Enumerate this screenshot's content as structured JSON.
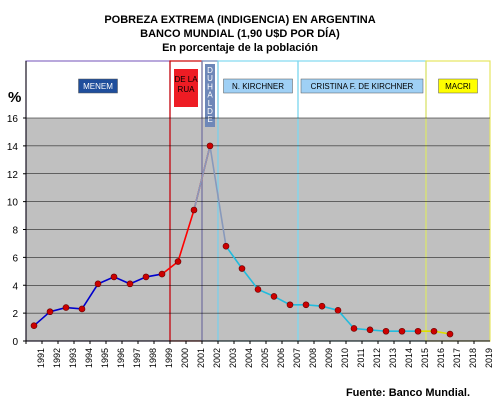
{
  "title_lines": [
    "POBREZA EXTREMA (INDIGENCIA) EN ARGENTINA",
    "BANCO MUNDIAL (1,90 U$D POR DÍA)",
    "En porcentaje de la población"
  ],
  "source": "Fuente: Banco Mundial.",
  "chart_data": {
    "type": "line",
    "ylabel": "%",
    "ylim": [
      0,
      16
    ],
    "yticks": [
      0,
      2,
      4,
      6,
      8,
      10,
      12,
      14,
      16
    ],
    "grid": "horizontal",
    "shaded_band": [
      0,
      16
    ],
    "x_categories": [
      "1991",
      "1992",
      "1993",
      "1994",
      "1995",
      "1996",
      "1997",
      "1998",
      "1999",
      "2000",
      "2001",
      "2002",
      "2003",
      "2004",
      "2005",
      "2006",
      "2007",
      "2008",
      "2009",
      "2010",
      "2011",
      "2012",
      "2013",
      "2014",
      "2015",
      "2016",
      "2017",
      "2018",
      "2019"
    ],
    "series": [
      {
        "color": "#0000cc",
        "x": [
          "1991",
          "1992",
          "1993",
          "1994",
          "1995",
          "1996",
          "1997",
          "1998",
          "1999"
        ],
        "values": [
          1.1,
          2.1,
          2.4,
          2.3,
          4.1,
          4.6,
          4.1,
          4.6,
          4.8
        ]
      },
      {
        "color": "#ff0000",
        "x": [
          "1999",
          "2000",
          "2001",
          "2002"
        ],
        "values": [
          4.8,
          5.7,
          9.4,
          14.0
        ]
      },
      {
        "color": "#8899bb",
        "x": [
          "2001",
          "2002",
          "2003"
        ],
        "values": [
          9.4,
          14.0,
          6.8
        ]
      },
      {
        "color": "#22bbdd",
        "x": [
          "2003",
          "2004",
          "2005",
          "2006",
          "2007",
          "2008",
          "2009",
          "2010",
          "2011",
          "2012",
          "2013",
          "2014",
          "2015"
        ],
        "values": [
          6.8,
          5.2,
          3.7,
          3.2,
          2.6,
          2.6,
          2.5,
          2.2,
          0.9,
          0.8,
          0.7,
          0.7,
          0.7
        ]
      },
      {
        "color": "#dddd00",
        "x": [
          "2015",
          "2016",
          "2017"
        ],
        "values": [
          0.7,
          0.7,
          0.5
        ]
      }
    ],
    "periods": [
      {
        "label": "MENEM",
        "from": "1990.5",
        "to": "1999.5",
        "box_color": "#1f4e9c",
        "text_color": "#ffffff",
        "border": "#8a6fc4"
      },
      {
        "label": "DE LA RUA",
        "from": "1999.5",
        "to": "2001.5",
        "box_color": "#ee1c24",
        "text_color": "#000000",
        "border": "#cc0000"
      },
      {
        "label": "DUHALDE",
        "from": "2001.5",
        "to": "2002.5",
        "box_color": "#6e87b8",
        "text_color": "#ffffff",
        "border": "#6e87b8"
      },
      {
        "label": "N. KIRCHNER",
        "from": "2002.5",
        "to": "2007.5",
        "box_color": "#9fd0f5",
        "text_color": "#000000",
        "border": "#80d8f0"
      },
      {
        "label": "CRISTINA F. DE KIRCHNER",
        "from": "2007.5",
        "to": "2015.5",
        "box_color": "#9fd0f5",
        "text_color": "#000000",
        "border": "#80d8f0"
      },
      {
        "label": "MACRI",
        "from": "2015.5",
        "to": "2019.5",
        "box_color": "#ffff00",
        "text_color": "#000000",
        "border": "#e5e560"
      }
    ]
  }
}
